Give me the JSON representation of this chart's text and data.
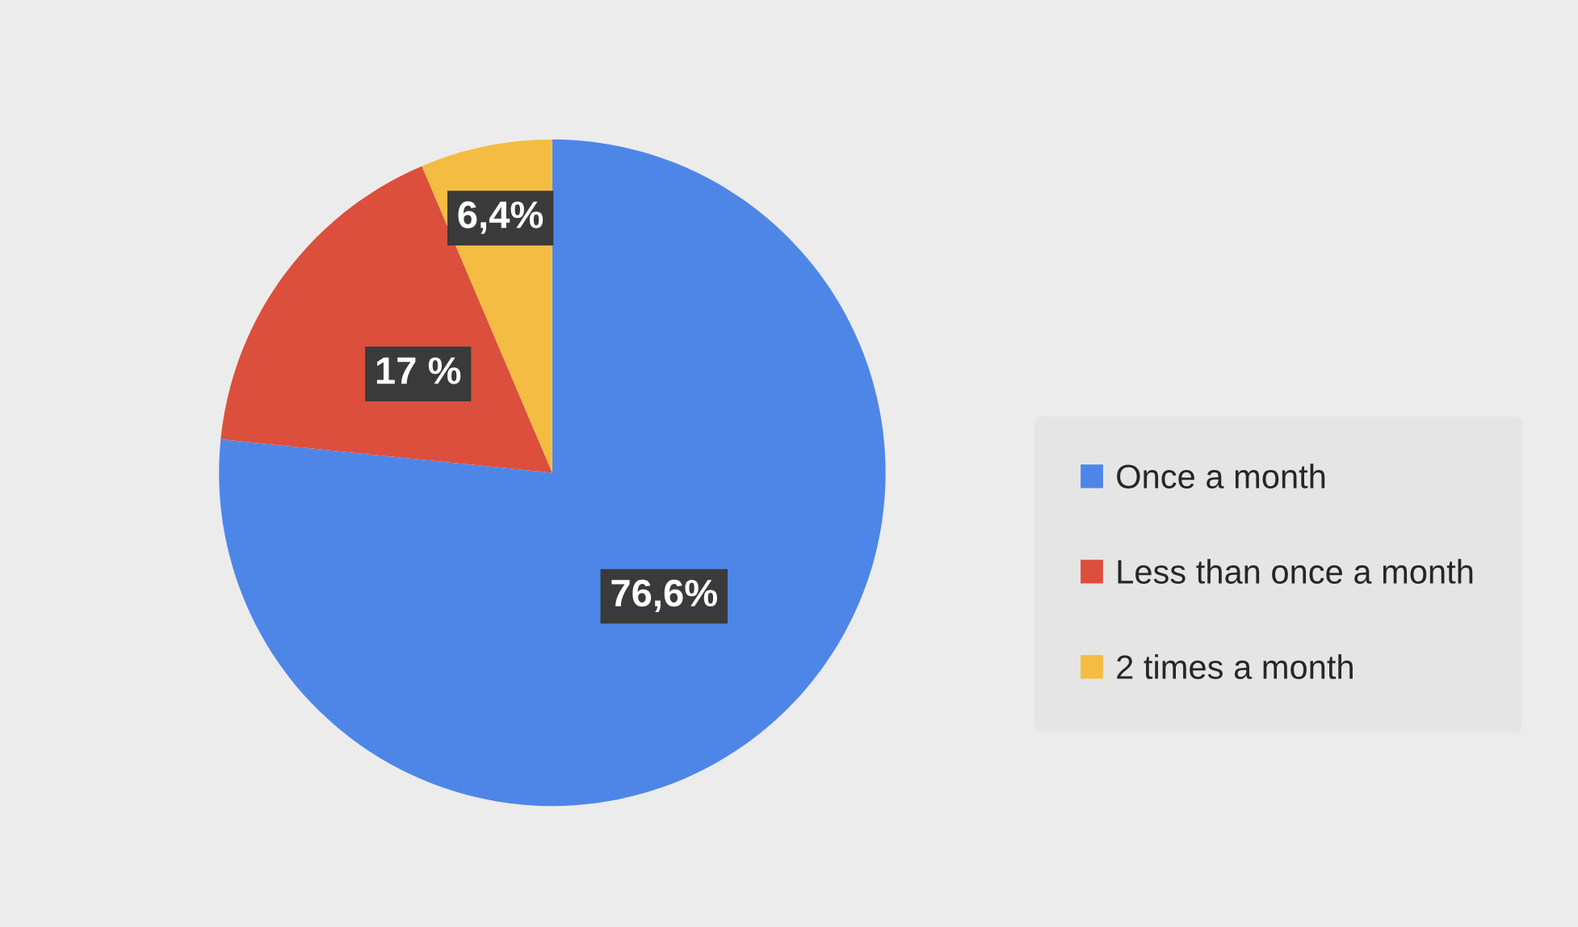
{
  "chart_data": {
    "type": "pie",
    "categories": [
      "Once a month",
      "Less than once a month",
      "2 times a month"
    ],
    "values": [
      76.6,
      17,
      6.4
    ],
    "value_labels": [
      "76,6%",
      "17 %",
      "6,4%"
    ],
    "colors": [
      "#4e86e8",
      "#dc4f3c",
      "#f4bc42"
    ],
    "legend": "right"
  }
}
